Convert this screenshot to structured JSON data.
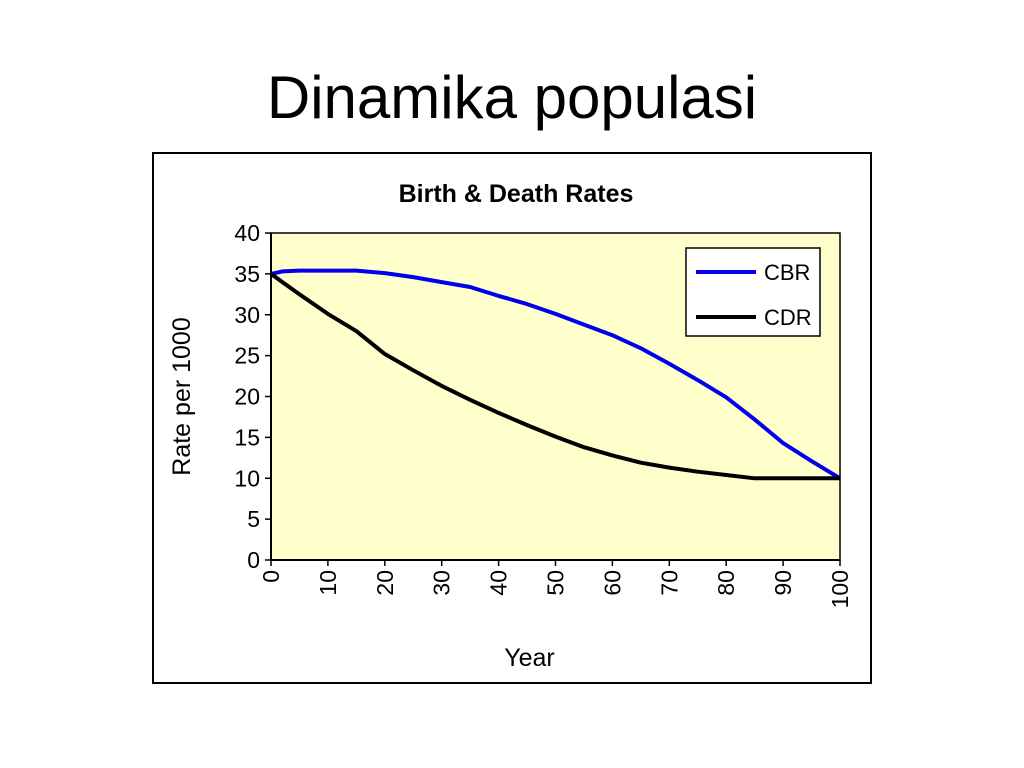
{
  "slide": {
    "title": "Dinamika populasi"
  },
  "chart_data": {
    "type": "line",
    "title": "Birth & Death Rates",
    "xlabel": "Year",
    "ylabel": "Rate per 1000",
    "xlim": [
      0,
      100
    ],
    "ylim": [
      0,
      40
    ],
    "xticks": [
      0,
      10,
      20,
      30,
      40,
      50,
      60,
      70,
      80,
      90,
      100
    ],
    "yticks": [
      0,
      5,
      10,
      15,
      20,
      25,
      30,
      35,
      40
    ],
    "plot_background": "#ffffcc",
    "legend": {
      "position": "top-right",
      "entries": [
        "CBR",
        "CDR"
      ]
    },
    "x": [
      0,
      2,
      5,
      10,
      15,
      20,
      25,
      30,
      35,
      40,
      45,
      50,
      55,
      60,
      65,
      70,
      75,
      80,
      85,
      90,
      95,
      100
    ],
    "series": [
      {
        "name": "CBR",
        "color": "#0000ee",
        "values": [
          35,
          35.3,
          35.4,
          35.4,
          35.4,
          35.1,
          34.6,
          34.0,
          33.4,
          32.3,
          31.3,
          30.1,
          28.8,
          27.5,
          25.9,
          24.0,
          22.0,
          19.9,
          17.2,
          14.3,
          12.1,
          10.0
        ]
      },
      {
        "name": "CDR",
        "color": "#000000",
        "values": [
          35,
          34.0,
          32.5,
          30.1,
          28.0,
          25.2,
          23.2,
          21.3,
          19.6,
          18.0,
          16.5,
          15.1,
          13.8,
          12.8,
          11.9,
          11.3,
          10.8,
          10.4,
          10.0,
          10.0,
          10.0,
          10.0
        ]
      }
    ]
  }
}
